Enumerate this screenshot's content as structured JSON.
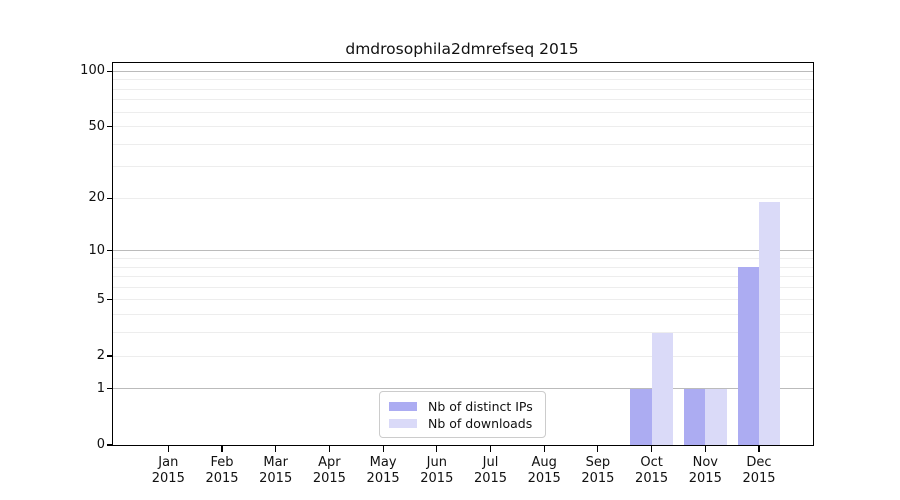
{
  "chart_data": {
    "type": "bar",
    "title": "dmdrosophila2dmrefseq 2015",
    "year": "2015",
    "categories": [
      "Jan",
      "Feb",
      "Mar",
      "Apr",
      "May",
      "Jun",
      "Jul",
      "Aug",
      "Sep",
      "Oct",
      "Nov",
      "Dec"
    ],
    "series": [
      {
        "name": "Nb of distinct IPs",
        "color": "#acacf2",
        "values": [
          0,
          0,
          0,
          0,
          0,
          0,
          0,
          0,
          0,
          1,
          1,
          8
        ]
      },
      {
        "name": "Nb of downloads",
        "color": "#dadaf8",
        "values": [
          0,
          0,
          0,
          0,
          0,
          0,
          0,
          0,
          0,
          3,
          1,
          19
        ]
      }
    ],
    "yscale": "log1p",
    "ylim": [
      0,
      110
    ],
    "yticks": [
      100,
      50,
      20,
      10,
      5,
      2,
      1,
      0
    ],
    "grid": {
      "orientation": "horizontal",
      "minor": [
        2,
        3,
        4,
        5,
        6,
        7,
        8,
        9,
        20,
        30,
        40,
        50,
        60,
        70,
        80,
        90
      ],
      "major": [
        1,
        10,
        100
      ]
    },
    "legend": {
      "position": "inside-bottom"
    },
    "xlabel": "",
    "ylabel": ""
  },
  "colors": {
    "background": "#ffffff",
    "axis": "#000000",
    "text": "#111111",
    "grid_minor": "#ededed",
    "grid_major": "#bbbbbb",
    "legend_border": "#cccccc",
    "series_distinct_ips": "#acacf2",
    "series_downloads": "#dadaf8"
  }
}
